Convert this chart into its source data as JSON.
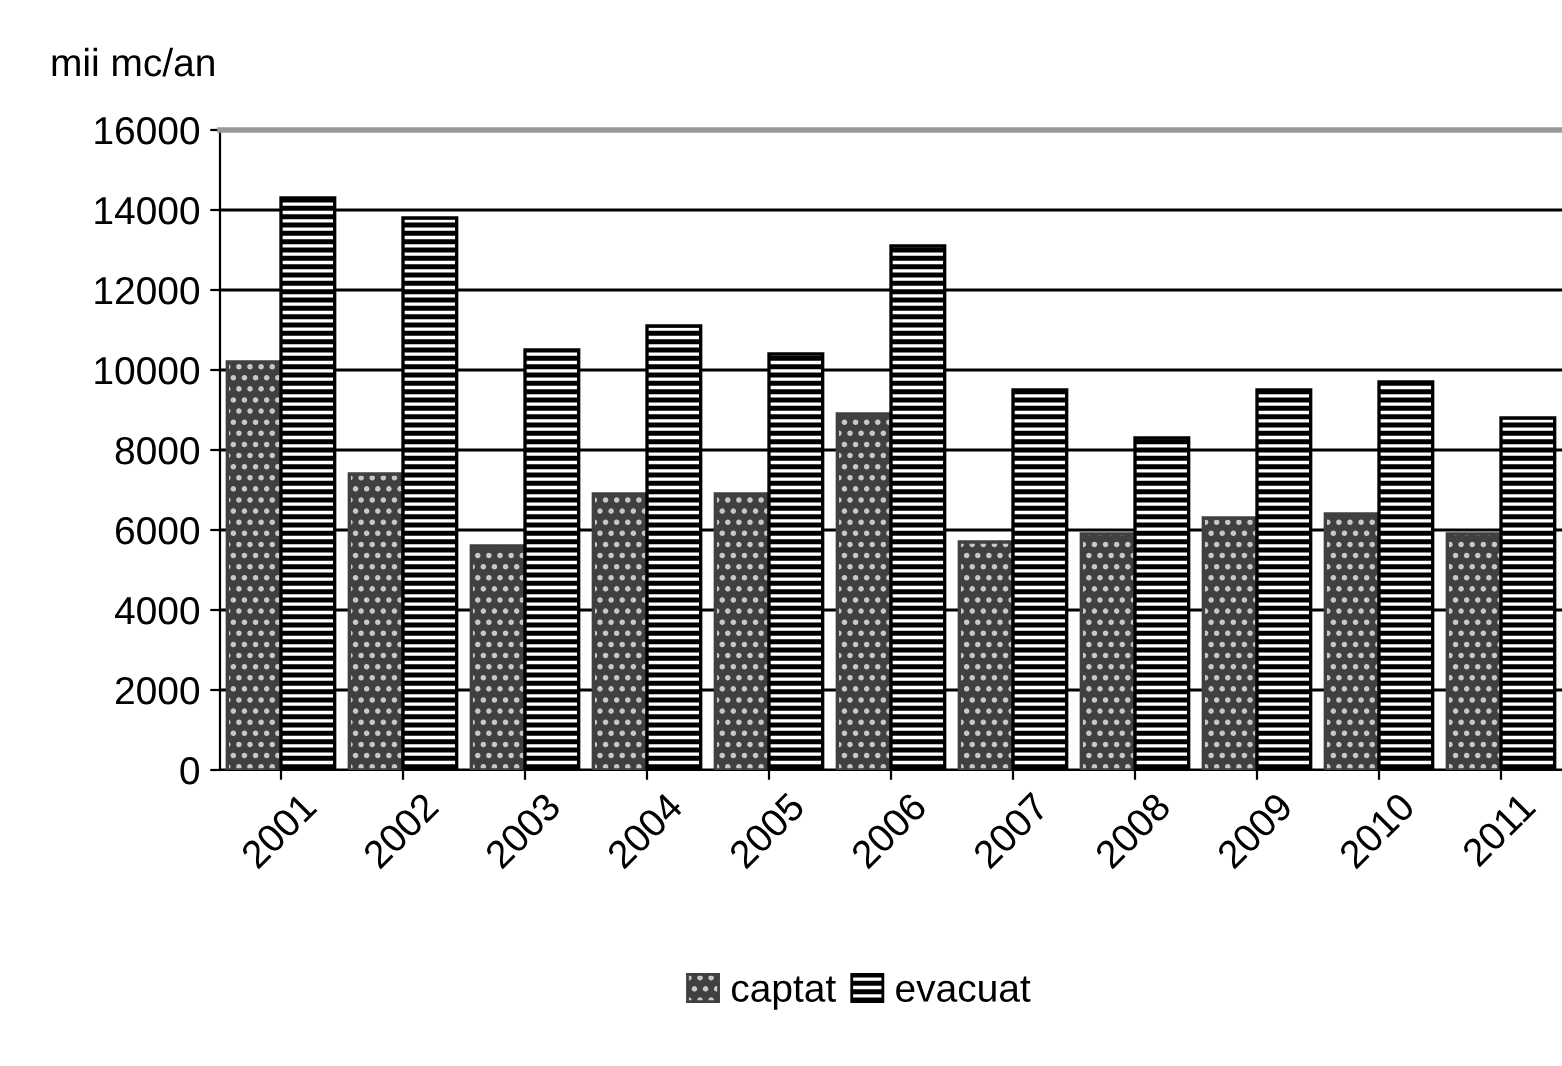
{
  "chart_data": {
    "type": "bar",
    "ylabel": "mii mc/an",
    "categories": [
      "2001",
      "2002",
      "2003",
      "2004",
      "2005",
      "2006",
      "2007",
      "2008",
      "2009",
      "2010",
      "2011"
    ],
    "series": [
      {
        "name": "captat",
        "color": "#404040",
        "values": [
          10200,
          7400,
          5600,
          6900,
          6900,
          8900,
          5700,
          5900,
          6300,
          6400,
          5900
        ]
      },
      {
        "name": "evacuat",
        "color": "#000000",
        "values": [
          14300,
          13800,
          10500,
          11100,
          10400,
          13100,
          9500,
          8300,
          9500,
          9700,
          8800
        ]
      }
    ],
    "ylim": [
      0,
      16000
    ],
    "yticks": [
      0,
      2000,
      4000,
      6000,
      8000,
      10000,
      12000,
      14000,
      16000
    ],
    "grid": "y",
    "legend": "bottom"
  }
}
